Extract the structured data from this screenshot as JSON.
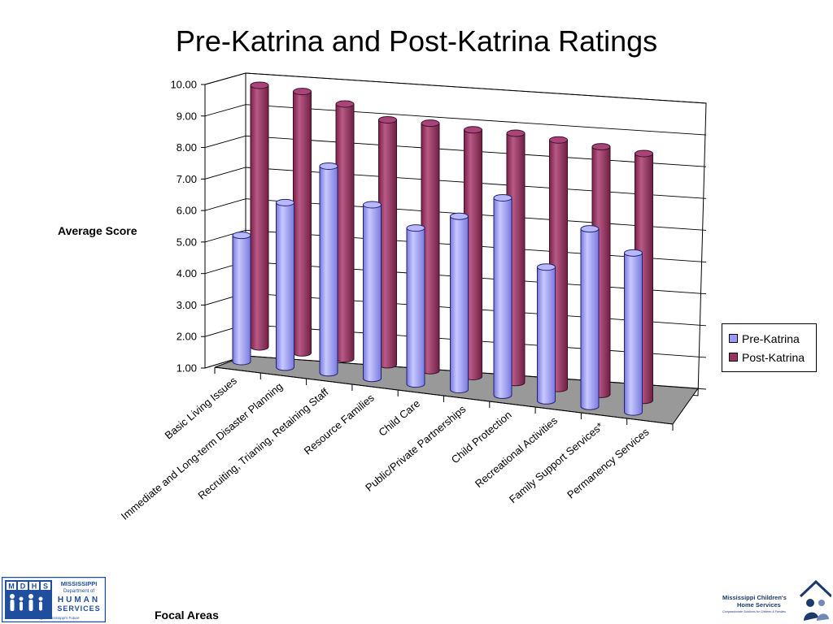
{
  "chart_data": {
    "type": "bar",
    "title": "Pre-Katrina and Post-Katrina Ratings",
    "xlabel": "Focal Areas",
    "ylabel": "Average Score",
    "ylim": [
      1.0,
      10.0
    ],
    "yticks": [
      "1.00",
      "2.00",
      "3.00",
      "4.00",
      "5.00",
      "6.00",
      "7.00",
      "8.00",
      "9.00",
      "10.00"
    ],
    "grid": true,
    "legend_position": "right",
    "categories": [
      "Basic Living Issues",
      "Immediate and Long-term Disaster Planning",
      "Recruiting, Trianing, Retaining Staff",
      "Resource Families",
      "Child Care",
      "Public/Private Partnerships",
      "Child Protection",
      "Recreational Activities",
      "Family Support Services*",
      "Permanency Services"
    ],
    "series": [
      {
        "name": "Pre-Katrina",
        "color": "#9999ff",
        "values": [
          5.1,
          6.3,
          7.6,
          6.5,
          5.9,
          6.4,
          7.1,
          5.1,
          6.4,
          5.8
        ]
      },
      {
        "name": "Post-Katrina",
        "color": "#993366",
        "values": [
          9.6,
          9.5,
          9.2,
          8.8,
          8.8,
          8.7,
          8.7,
          8.6,
          8.5,
          8.4
        ]
      }
    ]
  },
  "logos": {
    "mdhs": {
      "letters": [
        "M",
        "D",
        "H",
        "S"
      ],
      "line1": "MISSISSIPPI",
      "line2": "Department of",
      "line3": "HUMAN",
      "line4": "SERVICES",
      "tagline": "Investing in Mississippi's Future"
    },
    "mchs": {
      "line1": "Mississippi Children's",
      "line2": "Home Services",
      "tagline": "Compassionate Solutions for Children & Families"
    }
  }
}
